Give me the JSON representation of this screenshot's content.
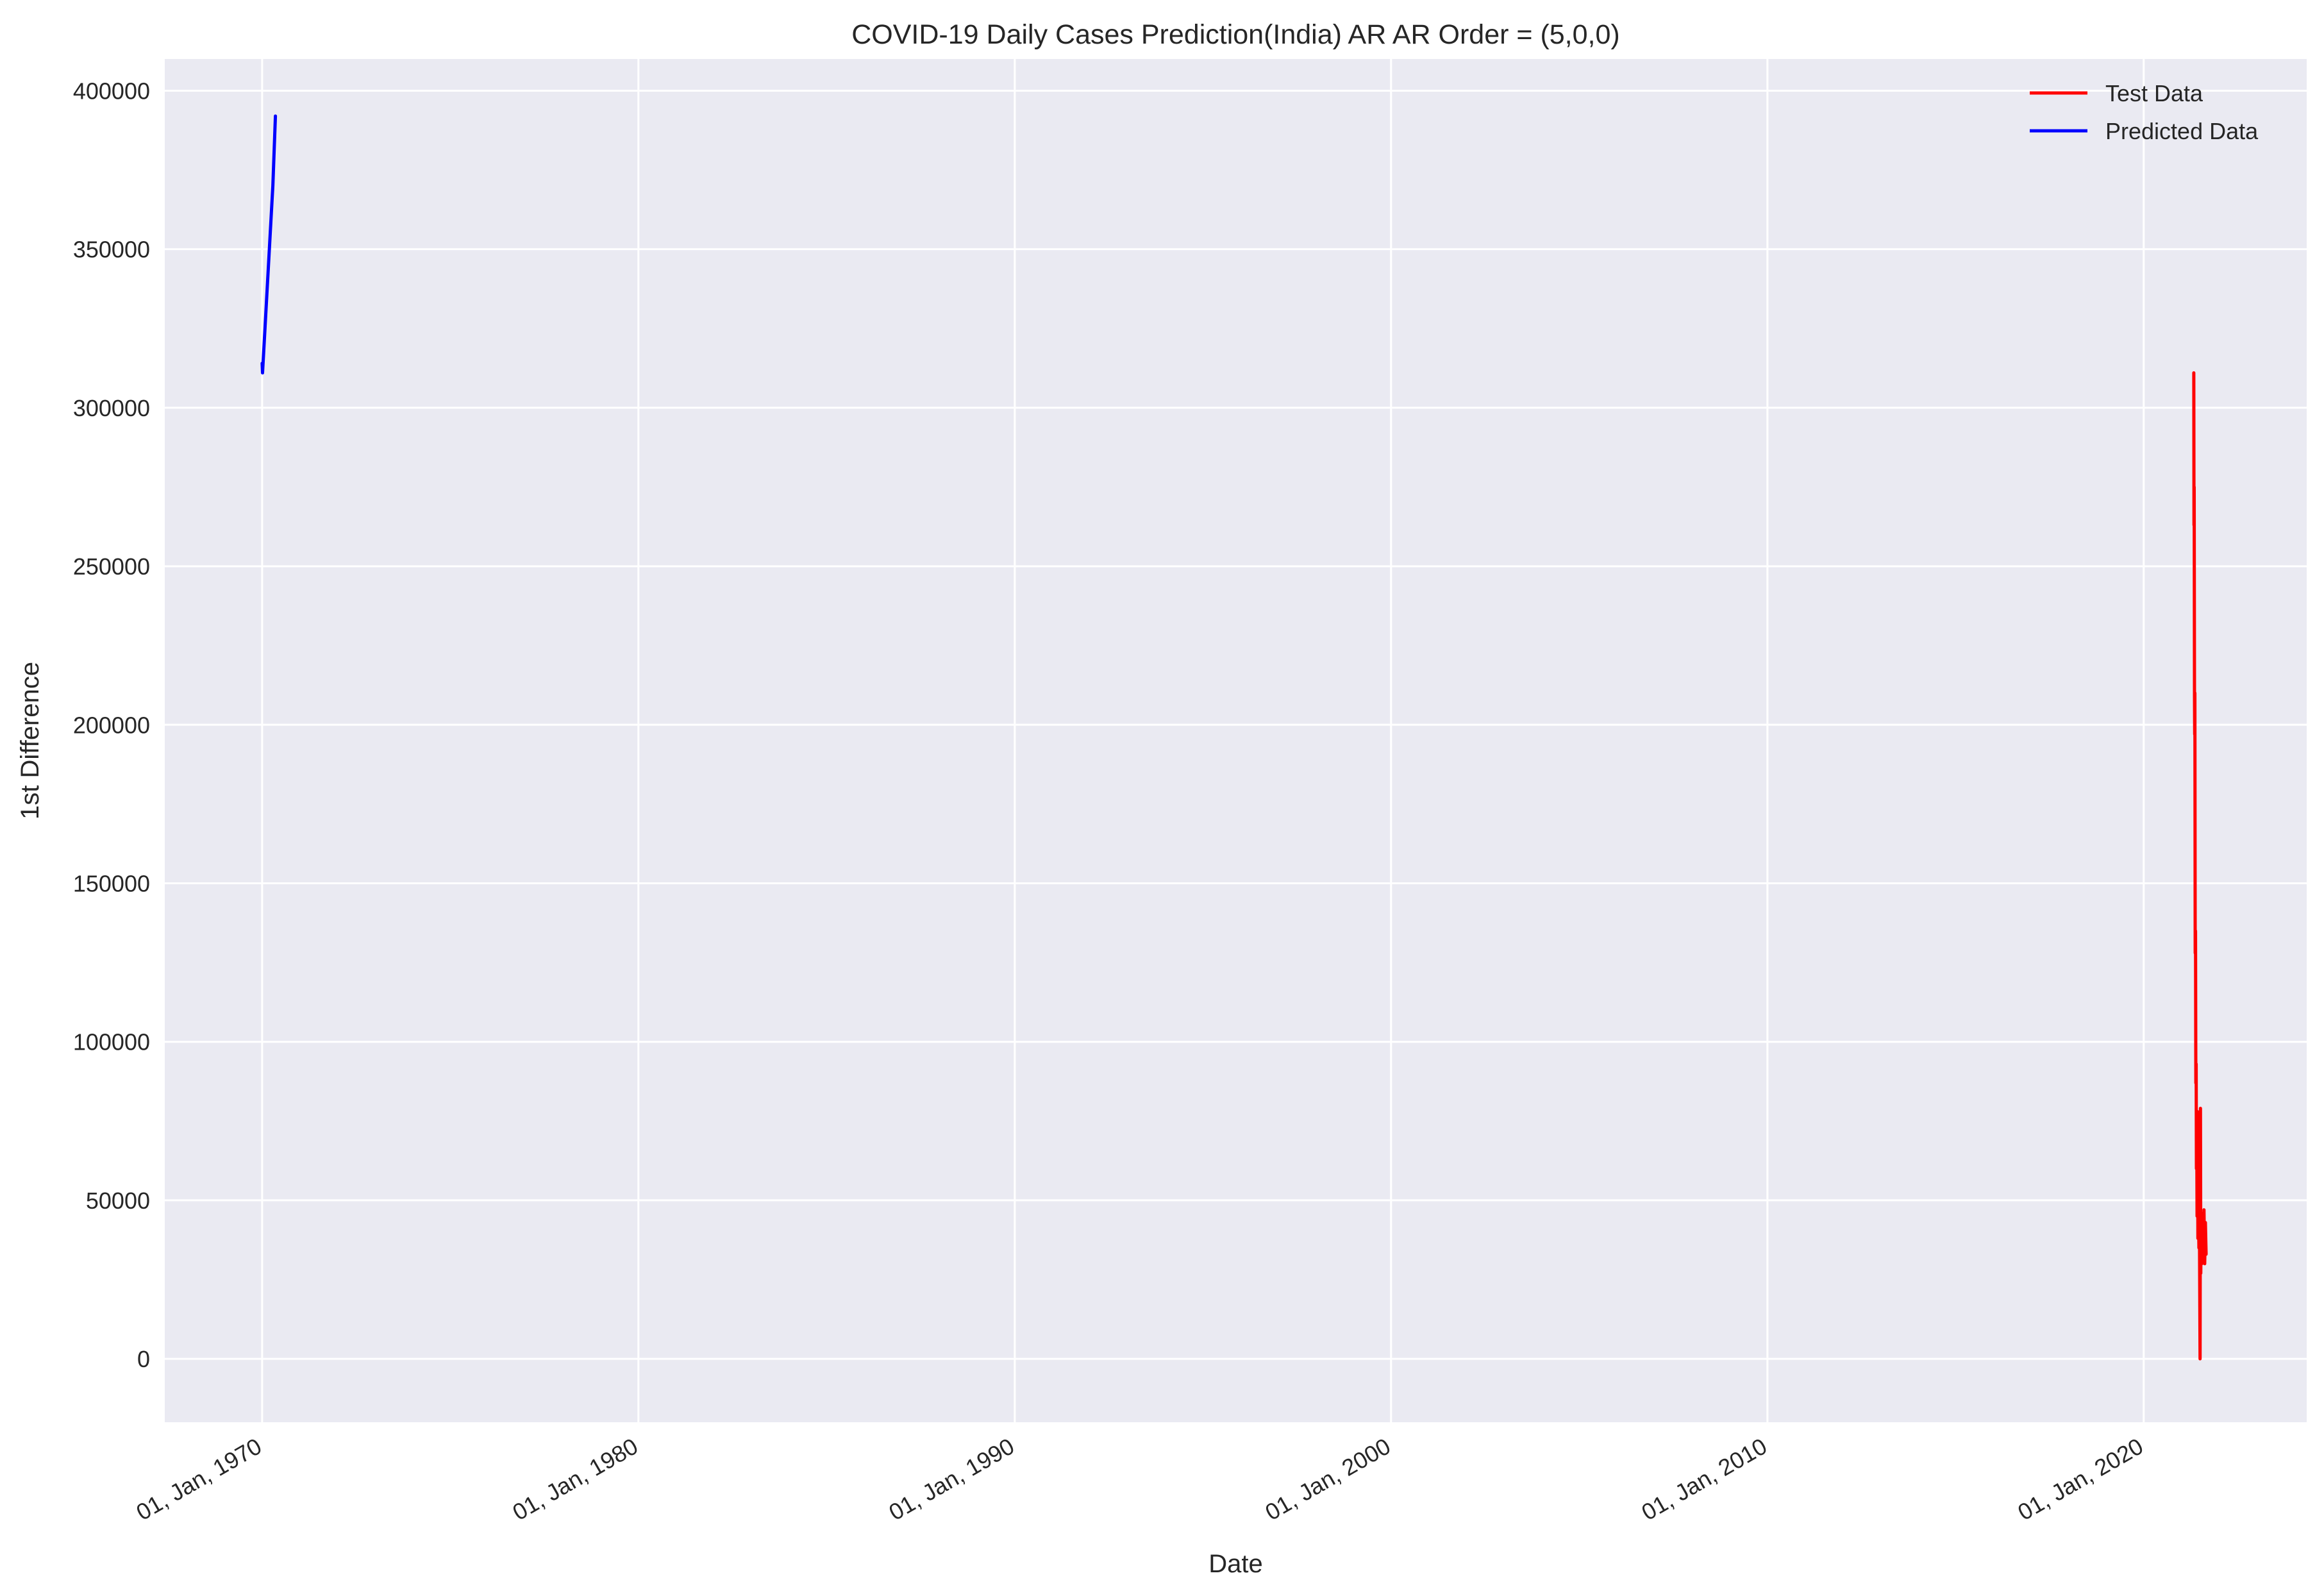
{
  "chart_data": {
    "type": "line",
    "title": "COVID-19 Daily Cases Prediction(India) AR AR Order = (5,0,0)",
    "xlabel": "Date",
    "ylabel": "1st Difference",
    "x_axis_type": "date",
    "xlim": [
      "1967-06-01",
      "2024-05-01"
    ],
    "ylim": [
      -20000,
      410000
    ],
    "x_ticks": [
      "1970-01-01",
      "1980-01-01",
      "1990-01-01",
      "2000-01-01",
      "2010-01-01",
      "2020-01-01"
    ],
    "x_tick_labels": [
      "01, Jan, 1970",
      "01, Jan, 1980",
      "01, Jan, 1990",
      "01, Jan, 2000",
      "01, Jan, 2010",
      "01, Jan, 2020"
    ],
    "y_ticks": [
      0,
      50000,
      100000,
      150000,
      200000,
      250000,
      300000,
      350000,
      400000
    ],
    "y_tick_labels": [
      "0",
      "50000",
      "100000",
      "150000",
      "200000",
      "250000",
      "300000",
      "350000",
      "400000"
    ],
    "grid": true,
    "legend_position": "top-right",
    "background_color": "#eaeaf2",
    "series": [
      {
        "name": "Test Data",
        "color": "#ff0000",
        "points": [
          [
            "2021-05-01",
            311000
          ],
          [
            "2021-05-03",
            263000
          ],
          [
            "2021-05-05",
            275000
          ],
          [
            "2021-05-08",
            209000
          ],
          [
            "2021-05-10",
            197000
          ],
          [
            "2021-05-12",
            210000
          ],
          [
            "2021-05-15",
            128000
          ],
          [
            "2021-05-18",
            135000
          ],
          [
            "2021-05-21",
            87000
          ],
          [
            "2021-05-24",
            93000
          ],
          [
            "2021-05-27",
            60000
          ],
          [
            "2021-05-30",
            72000
          ],
          [
            "2021-06-02",
            45000
          ],
          [
            "2021-06-06",
            78000
          ],
          [
            "2021-06-10",
            38000
          ],
          [
            "2021-06-15",
            50000
          ],
          [
            "2021-06-20",
            35000
          ],
          [
            "2021-06-25",
            42000
          ],
          [
            "2021-07-01",
            0
          ],
          [
            "2021-07-05",
            79000
          ],
          [
            "2021-07-08",
            27000
          ],
          [
            "2021-07-12",
            46000
          ],
          [
            "2021-07-18",
            30000
          ],
          [
            "2021-07-25",
            40000
          ],
          [
            "2021-08-01",
            35000
          ],
          [
            "2021-08-08",
            47000
          ],
          [
            "2021-08-15",
            30000
          ],
          [
            "2021-08-22",
            43000
          ],
          [
            "2021-08-29",
            33000
          ]
        ]
      },
      {
        "name": "Predicted Data",
        "color": "#0000ff",
        "points": [
          [
            "1970-01-01",
            314000
          ],
          [
            "1970-01-05",
            311000
          ],
          [
            "1970-04-15",
            370000
          ],
          [
            "1970-05-10",
            392000
          ]
        ]
      }
    ]
  }
}
